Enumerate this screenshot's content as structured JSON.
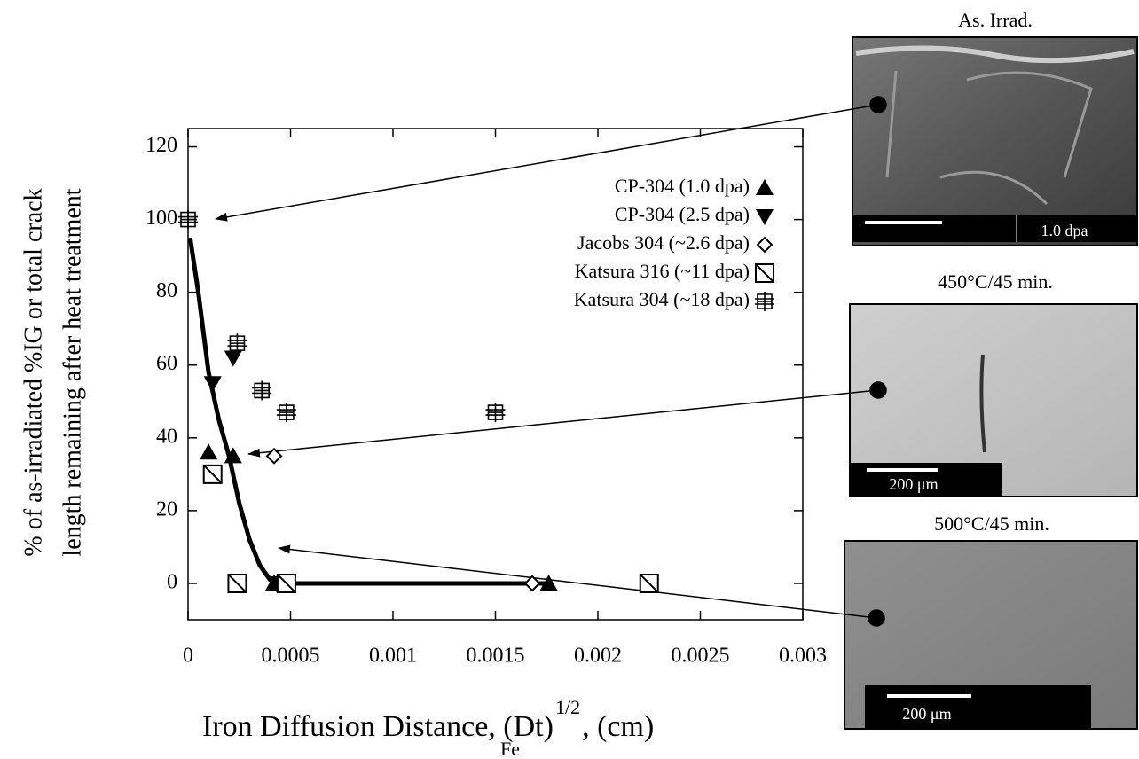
{
  "chart_data": {
    "type": "scatter",
    "y_label": [
      "% of as-irradiated %IG or total crack",
      "length remaining after heat treatment"
    ],
    "x_label": {
      "text": "Iron Diffusion Distance, (Dt)",
      "subscript": "Fe",
      "superscript": "1/2",
      "suffix": ",  (cm)"
    },
    "xlim": [
      0,
      0.003
    ],
    "xticks": [
      0,
      0.0005,
      0.001,
      0.0015,
      0.002,
      0.0025,
      0.003
    ],
    "ylim": [
      -10,
      125
    ],
    "yticks": [
      0,
      20,
      40,
      60,
      80,
      100,
      120
    ],
    "legend": "upper right",
    "series": [
      {
        "name": "CP-304 (1.0 dpa)",
        "marker": "triangle-up",
        "color": "#000000",
        "x": [
          0.0001,
          0.00022,
          0.00042,
          0.00176
        ],
        "values": [
          36,
          35,
          0,
          0
        ]
      },
      {
        "name": "CP-304 (2.5 dpa)",
        "marker": "triangle-down",
        "color": "#000000",
        "x": [
          0.00012,
          0.00022,
          0.00043
        ],
        "values": [
          55,
          62,
          0
        ]
      },
      {
        "name": "Jacobs 304 (~2.6 dpa)",
        "marker": "diamond",
        "color": "#000000",
        "x": [
          0.00042,
          0.00168
        ],
        "values": [
          35,
          0
        ]
      },
      {
        "name": "Katsura 316 (~11 dpa)",
        "marker": "box-slash",
        "color": "#000000",
        "x": [
          0.00012,
          0.00024,
          0.00048,
          0.00225
        ],
        "values": [
          30,
          0,
          0,
          0
        ]
      },
      {
        "name": "Katsura 304 (~18 dpa)",
        "marker": "box-cross",
        "color": "#000000",
        "x": [
          0,
          0.00024,
          0.00036,
          0.00048,
          0.0015
        ],
        "values": [
          100,
          66,
          53,
          47,
          47
        ]
      }
    ],
    "fit_curve": {
      "color": "#000000",
      "x": [
        1e-05,
        5e-05,
        0.0001,
        0.00015,
        0.0002,
        0.00025,
        0.0003,
        0.00035,
        0.0004,
        0.00043,
        0.00176
      ],
      "values": [
        95,
        80,
        58,
        45,
        35,
        22,
        12,
        5,
        1,
        0,
        0
      ]
    }
  },
  "images": [
    {
      "title": "As. Irrad.",
      "scale_label": "1.0 dpa"
    },
    {
      "title": "450°C/45 min.",
      "scale_label": "200 μm"
    },
    {
      "title": "500°C/45 min.",
      "scale_label": "200 μm"
    }
  ]
}
